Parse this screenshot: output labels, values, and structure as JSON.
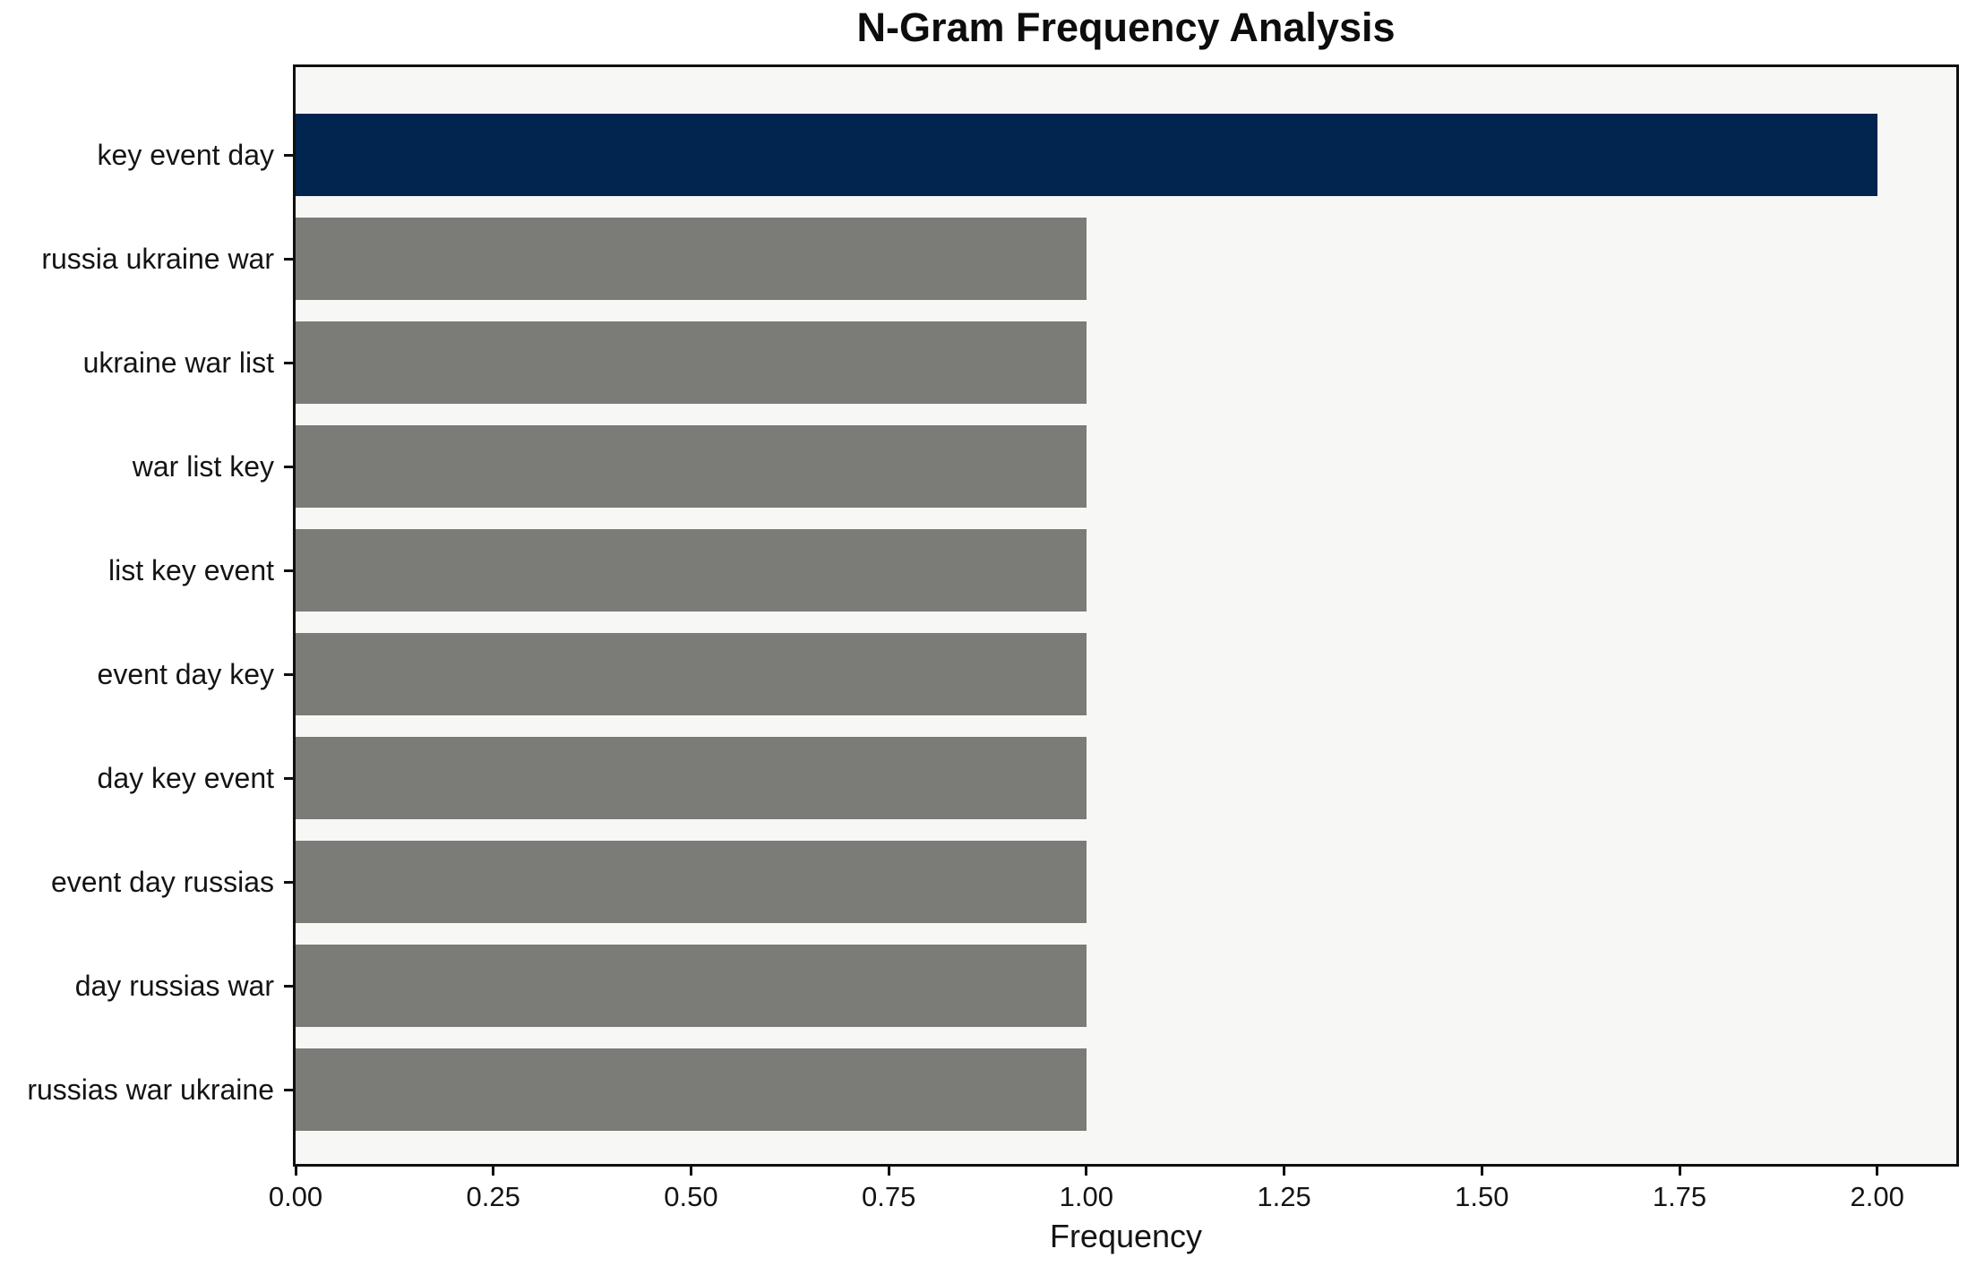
{
  "figure": {
    "background": "#ffffff",
    "plot_background": "#f7f7f6",
    "spine_color": "#0f0f0f",
    "text_color": "#141414"
  },
  "chart_data": {
    "type": "bar",
    "orientation": "horizontal",
    "title": "N-Gram Frequency Analysis",
    "xlabel": "Frequency",
    "ylabel": "",
    "categories": [
      "key event day",
      "russia ukraine war",
      "ukraine war list",
      "war list key",
      "list key event",
      "event day key",
      "day key event",
      "event day russias",
      "day russias war",
      "russias war ukraine"
    ],
    "values": [
      2,
      1,
      1,
      1,
      1,
      1,
      1,
      1,
      1,
      1
    ],
    "bar_colors": [
      "#022550",
      "#7b7b78",
      "#7b7b78",
      "#7b7b78",
      "#7b7b78",
      "#7b7b78",
      "#7b7b78",
      "#7b7b78",
      "#7b7b78",
      "#7b7b78"
    ],
    "highlight_color": "#022550",
    "default_bar_color": "#7b7b78",
    "xlim": [
      0,
      2.1
    ],
    "xticks": [
      {
        "value": 0.0,
        "label": "0.00"
      },
      {
        "value": 0.25,
        "label": "0.25"
      },
      {
        "value": 0.5,
        "label": "0.50"
      },
      {
        "value": 0.75,
        "label": "0.75"
      },
      {
        "value": 1.0,
        "label": "1.00"
      },
      {
        "value": 1.25,
        "label": "1.25"
      },
      {
        "value": 1.5,
        "label": "1.50"
      },
      {
        "value": 1.75,
        "label": "1.75"
      },
      {
        "value": 2.0,
        "label": "2.00"
      }
    ],
    "grid": false,
    "legend": null
  }
}
